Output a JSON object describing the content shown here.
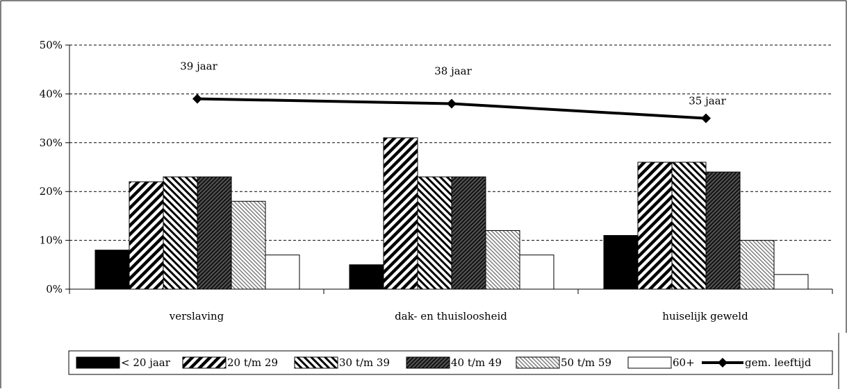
{
  "chart_data": {
    "type": "bar",
    "title": "",
    "xlabel": "",
    "ylabel": "",
    "ylim": [
      0,
      50
    ],
    "yticks": [
      "0%",
      "10%",
      "20%",
      "30%",
      "40%",
      "50%"
    ],
    "grid": "dashed-horizontal",
    "categories": [
      "verslaving",
      "dak- en thuisloosheid",
      "huiselijk geweld"
    ],
    "series": [
      {
        "name": "< 20 jaar",
        "values": [
          8,
          5,
          11
        ],
        "fill": "solid-black"
      },
      {
        "name": "20 t/m 29",
        "values": [
          22,
          31,
          26
        ],
        "fill": "diagonal-thick"
      },
      {
        "name": "30 t/m 39",
        "values": [
          23,
          23,
          26
        ],
        "fill": "diagonal-reverse"
      },
      {
        "name": "40 t/m 49",
        "values": [
          23,
          23,
          24
        ],
        "fill": "diagonal-dense"
      },
      {
        "name": "50 t/m 59",
        "values": [
          18,
          12,
          10
        ],
        "fill": "diagonal-light"
      },
      {
        "name": "60+",
        "values": [
          7,
          7,
          3
        ],
        "fill": "white"
      }
    ],
    "line": {
      "name": "gem. leeftijd",
      "values": [
        39,
        38,
        35
      ],
      "labels": [
        "39 jaar",
        "38 jaar",
        "35 jaar"
      ]
    },
    "legend_position": "bottom"
  }
}
